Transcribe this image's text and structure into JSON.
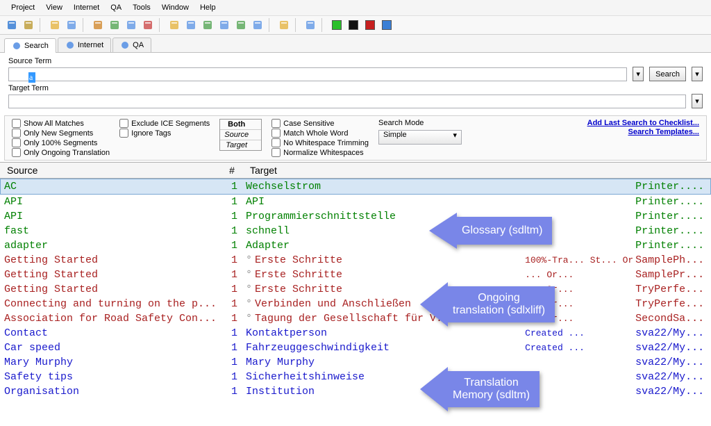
{
  "menu": [
    "Project",
    "View",
    "Internet",
    "QA",
    "Tools",
    "Window",
    "Help"
  ],
  "tabs": [
    {
      "label": "Search",
      "icon": "search-icon",
      "active": true
    },
    {
      "label": "Internet",
      "icon": "globe-icon",
      "active": false
    },
    {
      "label": "QA",
      "icon": "check-icon",
      "active": false
    }
  ],
  "search": {
    "source_label": "Source Term",
    "source_value": "a",
    "target_label": "Target Term",
    "target_value": "",
    "button": "Search"
  },
  "options": {
    "left": [
      {
        "label": "Show All Matches",
        "checked": false
      },
      {
        "label": "Only New Segments",
        "checked": false
      },
      {
        "label": "Only 100% Segments",
        "checked": false
      },
      {
        "label": "Only Ongoing Translation",
        "checked": false
      }
    ],
    "mid": [
      {
        "label": "Exclude ICE Segments",
        "checked": false
      },
      {
        "label": "Ignore Tags",
        "checked": false
      }
    ],
    "both": [
      "Both",
      "Source",
      "Target"
    ],
    "right": [
      {
        "label": "Case Sensitive",
        "checked": false
      },
      {
        "label": "Match Whole Word",
        "checked": false
      },
      {
        "label": "No Whitespace Trimming",
        "checked": false
      },
      {
        "label": "Normalize Whitespaces",
        "checked": false
      }
    ],
    "mode_label": "Search Mode",
    "mode_value": "Simple",
    "links": [
      "Add Last Search to Checklist...",
      "Search Templates..."
    ]
  },
  "columns": {
    "source": "Source",
    "num": "#",
    "target": "Target"
  },
  "rows": [
    {
      "source": "AC",
      "num": "1",
      "target": "Wechselstrom",
      "meta": "",
      "file": "Printer....",
      "cls": "g-green",
      "sel": true,
      "deg": false
    },
    {
      "source": "API",
      "num": "1",
      "target": "API",
      "meta": "",
      "file": "Printer....",
      "cls": "g-green",
      "deg": false
    },
    {
      "source": "API",
      "num": "1",
      "target": "Programmierschnittstelle",
      "meta": "",
      "file": "Printer....",
      "cls": "g-green",
      "deg": false
    },
    {
      "source": "fast",
      "num": "1",
      "target": "schnell",
      "meta": "",
      "file": "Printer....",
      "cls": "g-green",
      "deg": false
    },
    {
      "source": "adapter",
      "num": "1",
      "target": "Adapter",
      "meta": "",
      "file": "Printer....",
      "cls": "g-green",
      "deg": false
    },
    {
      "source": "Getting Started",
      "num": "1",
      "target": "Erste Schritte",
      "meta": "100%-Tra... St... Or...",
      "file": "SamplePh...",
      "cls": "g-red",
      "deg": true
    },
    {
      "source": "Getting Started",
      "num": "1",
      "target": "Erste Schritte",
      "meta": "             ... Or...",
      "file": "SamplePr...",
      "cls": "g-red",
      "deg": true
    },
    {
      "source": "Getting Started",
      "num": "1",
      "target": "Erste Schritte",
      "meta": "             ... Or...",
      "file": "TryPerfe...",
      "cls": "g-red",
      "deg": true
    },
    {
      "source": "Connecting and turning on the p...",
      "num": "1",
      "target": "Verbinden und Anschließen",
      "meta": "             ... Or...",
      "file": "TryPerfe...",
      "cls": "g-red",
      "deg": true
    },
    {
      "source": "Association for Road Safety Con...",
      "num": "1",
      "target": "Tagung der Gesellschaft für V...",
      "meta": "          ... Or...",
      "file": "SecondSa...",
      "cls": "g-red",
      "deg": true
    },
    {
      "source": "Contact",
      "num": "1",
      "target": "Kontaktperson",
      "meta": "Created ...",
      "file": "sva22/My...",
      "cls": "g-blue",
      "deg": false
    },
    {
      "source": "Car speed",
      "num": "1",
      "target": "Fahrzeuggeschwindigkeit",
      "meta": "Created ...",
      "file": "sva22/My...",
      "cls": "g-blue",
      "deg": false
    },
    {
      "source": "Mary Murphy",
      "num": "1",
      "target": "Mary Murphy",
      "meta": "",
      "file": "sva22/My...",
      "cls": "g-blue",
      "deg": false
    },
    {
      "source": "Safety tips",
      "num": "1",
      "target": "Sicherheitshinweise",
      "meta": "",
      "file": "sva22/My...",
      "cls": "g-blue",
      "deg": false
    },
    {
      "source": "Organisation",
      "num": "1",
      "target": "Institution",
      "meta": "",
      "file": "sva22/My...",
      "cls": "g-blue",
      "deg": false
    }
  ],
  "callouts": {
    "glossary": "Glossary (sdltm)",
    "ongoing1": "Ongoing",
    "ongoing2": "translation (sdlxliff)",
    "tm1": "Translation",
    "tm2": "Memory (sdltm)"
  },
  "toolbar_icons": [
    {
      "name": "print-icon",
      "c": "#3a7fd5"
    },
    {
      "name": "undo-icon",
      "c": "#c0a040"
    },
    {
      "name": "folder-open-icon",
      "c": "#e6b84d"
    },
    {
      "name": "save-icon",
      "c": "#6a9de6"
    },
    {
      "name": "doc1-icon",
      "c": "#d48f3b"
    },
    {
      "name": "doc2-icon",
      "c": "#5faa5f"
    },
    {
      "name": "doc3-icon",
      "c": "#6a9de6"
    },
    {
      "name": "doc4-icon",
      "c": "#cf5555"
    },
    {
      "name": "copy-icon",
      "c": "#e6b84d"
    },
    {
      "name": "list-icon",
      "c": "#6a9de6"
    },
    {
      "name": "find-icon",
      "c": "#5faa5f"
    },
    {
      "name": "zoom-icon",
      "c": "#6a9de6"
    },
    {
      "name": "refresh-icon",
      "c": "#5faa5f"
    },
    {
      "name": "tree-icon",
      "c": "#6a9de6"
    },
    {
      "name": "export-icon",
      "c": "#e6b84d"
    },
    {
      "name": "panel-icon",
      "c": "#6a9de6"
    }
  ],
  "color_squares": [
    "#2bbf2b",
    "#111111",
    "#c62020",
    "#3a7fd5"
  ]
}
